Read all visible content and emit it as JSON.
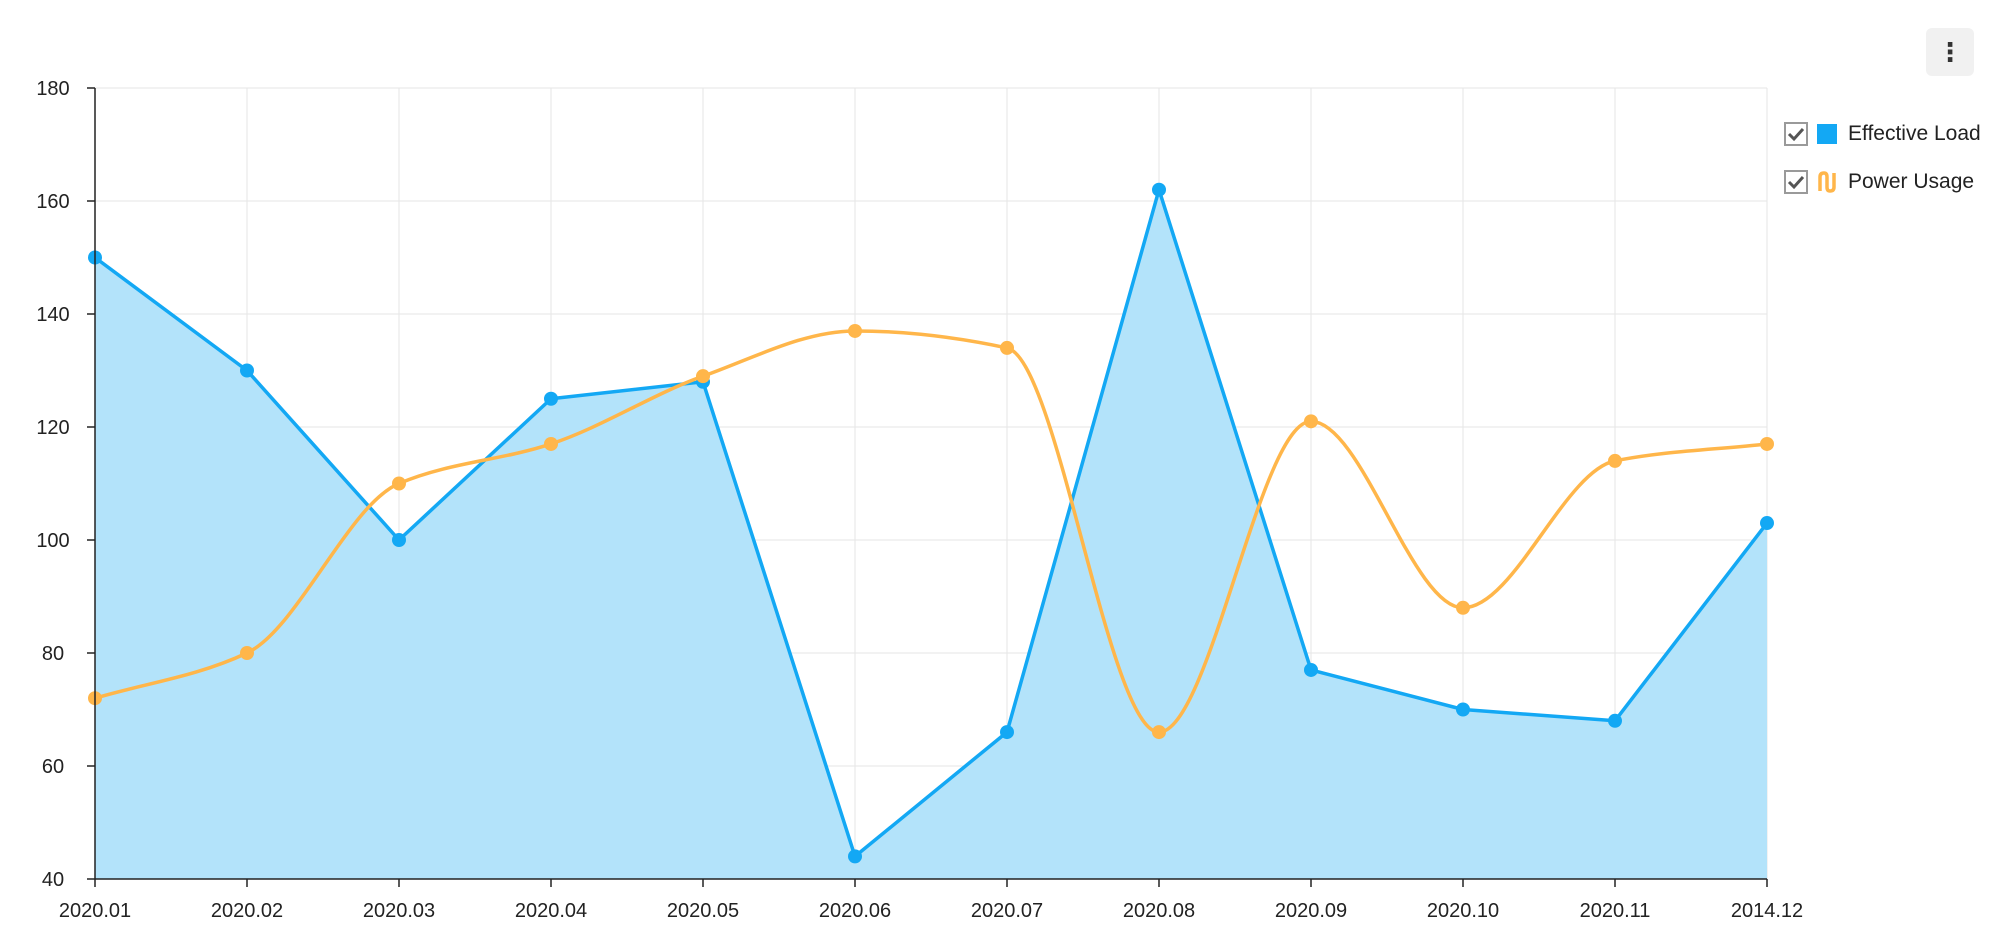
{
  "menu": {
    "icon": "vertical-ellipsis-icon",
    "glyph": "⋮"
  },
  "chart_data": {
    "type": "line",
    "categories": [
      "2020.01",
      "2020.02",
      "2020.03",
      "2020.04",
      "2020.05",
      "2020.06",
      "2020.07",
      "2020.08",
      "2020.09",
      "2020.10",
      "2020.11",
      "2014.12"
    ],
    "ylim": [
      40,
      180
    ],
    "yticks": [
      40,
      60,
      80,
      100,
      120,
      140,
      160,
      180
    ],
    "grid": true,
    "legend_position": "right",
    "series": [
      {
        "name": "Effective Load",
        "style": "area",
        "smooth": false,
        "color": "#13a8f4",
        "fill": "#b3e3fa",
        "values": [
          150,
          130,
          100,
          125,
          128,
          44,
          66,
          162,
          77,
          70,
          68,
          103
        ]
      },
      {
        "name": "Power Usage",
        "style": "line",
        "smooth": true,
        "color": "#ffb64a",
        "values": [
          72,
          80,
          110,
          117,
          129,
          137,
          134,
          66,
          121,
          88,
          114,
          117
        ]
      }
    ]
  },
  "legend": {
    "items": [
      {
        "label": "Effective Load",
        "checked": true,
        "icon": "area-series-icon",
        "color": "#13a8f4"
      },
      {
        "label": "Power Usage",
        "checked": true,
        "icon": "spline-series-icon",
        "color": "#ffb64a"
      }
    ]
  }
}
